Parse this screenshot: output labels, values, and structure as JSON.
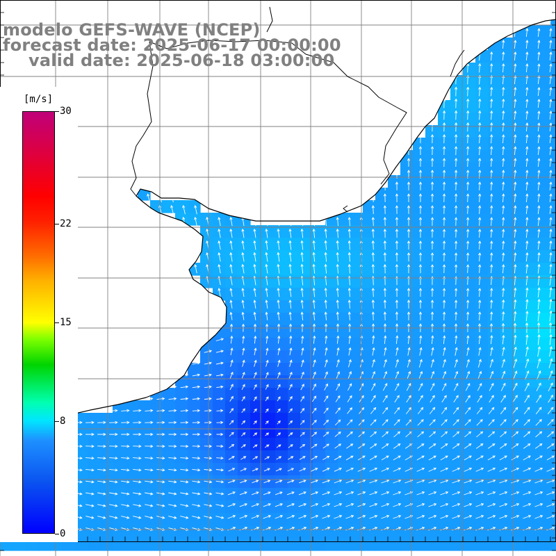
{
  "title": {
    "line1": "modelo GEFS-WAVE (NCEP)",
    "line2": "forecast date: 2025-06-17 00:00:00",
    "line3": "valid date: 2025-06-18 03:00:00"
  },
  "colorbar": {
    "unit": "[m/s]",
    "min": 0,
    "max": 30,
    "ticks": [
      "30",
      "22",
      "15",
      "8",
      "0"
    ],
    "tick_values": [
      30,
      22,
      15,
      8,
      0
    ]
  },
  "colors": {
    "grid": "#808080",
    "coast": "#000000",
    "arrow": "#ffffff",
    "land": "#ffffff",
    "title": "#808080"
  },
  "map": {
    "variable": "wind speed and direction",
    "field_range_ms": [
      1,
      13
    ],
    "grid": true
  }
}
